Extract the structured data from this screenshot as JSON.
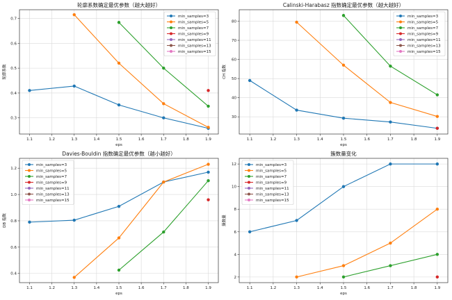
{
  "colors": {
    "min_samples=3": "#1f77b4",
    "min_samples=5": "#ff7f0e",
    "min_samples=7": "#2ca02c",
    "min_samples=9": "#d62728",
    "min_samples=11": "#9467bd",
    "min_samples=13": "#8c564b",
    "min_samples=15": "#e377c2"
  },
  "chart_data": [
    {
      "type": "line",
      "title": "轮廓系数确定最优参数（越大越好）",
      "xlabel": "eps",
      "ylabel": "轮廓系数",
      "x": [
        1.1,
        1.3,
        1.5,
        1.7,
        1.9
      ],
      "xticks": [
        1.1,
        1.2,
        1.3,
        1.4,
        1.5,
        1.6,
        1.7,
        1.8,
        1.9
      ],
      "ylim": [
        0.235,
        0.735
      ],
      "yticks": [
        0.3,
        0.4,
        0.5,
        0.6,
        0.7
      ],
      "grid": true,
      "legend": "top-right",
      "series": [
        {
          "name": "min_samples=3",
          "values": [
            0.41,
            0.428,
            0.352,
            0.3,
            0.258
          ]
        },
        {
          "name": "min_samples=5",
          "values": [
            null,
            0.715,
            0.52,
            0.357,
            0.262
          ]
        },
        {
          "name": "min_samples=7",
          "values": [
            null,
            null,
            0.684,
            0.5,
            0.347
          ]
        },
        {
          "name": "min_samples=9",
          "values": [
            null,
            null,
            null,
            null,
            0.41
          ]
        },
        {
          "name": "min_samples=11",
          "values": [
            null,
            null,
            null,
            null,
            null
          ]
        },
        {
          "name": "min_samples=13",
          "values": [
            null,
            null,
            null,
            null,
            null
          ]
        },
        {
          "name": "min_samples=15",
          "values": [
            null,
            null,
            null,
            null,
            null
          ]
        }
      ]
    },
    {
      "type": "line",
      "title": "Calinski-Harabasz 指数确定最优参数（越大越好）",
      "xlabel": "eps",
      "ylabel": "CH 指数",
      "x": [
        1.1,
        1.3,
        1.5,
        1.7,
        1.9
      ],
      "xticks": [
        1.1,
        1.2,
        1.3,
        1.4,
        1.5,
        1.6,
        1.7,
        1.8,
        1.9
      ],
      "ylim": [
        21,
        86
      ],
      "yticks": [
        30,
        40,
        50,
        60,
        70,
        80
      ],
      "grid": true,
      "legend": "top-right",
      "series": [
        {
          "name": "min_samples=3",
          "values": [
            49,
            33.5,
            29.3,
            27.3,
            24
          ]
        },
        {
          "name": "min_samples=5",
          "values": [
            null,
            79.5,
            57,
            37.5,
            30.2
          ]
        },
        {
          "name": "min_samples=7",
          "values": [
            null,
            null,
            83,
            56.5,
            41.5
          ]
        },
        {
          "name": "min_samples=9",
          "values": [
            null,
            null,
            null,
            null,
            24
          ]
        },
        {
          "name": "min_samples=11",
          "values": [
            null,
            null,
            null,
            null,
            null
          ]
        },
        {
          "name": "min_samples=13",
          "values": [
            null,
            null,
            null,
            null,
            null
          ]
        },
        {
          "name": "min_samples=15",
          "values": [
            null,
            null,
            null,
            null,
            null
          ]
        }
      ]
    },
    {
      "type": "line",
      "title": "Davies-Bouldin 指数确定最优参数（越小越好）",
      "xlabel": "eps",
      "ylabel": "DB 指数",
      "x": [
        1.1,
        1.3,
        1.5,
        1.7,
        1.9
      ],
      "xticks": [
        1.1,
        1.2,
        1.3,
        1.4,
        1.5,
        1.6,
        1.7,
        1.8,
        1.9
      ],
      "ylim": [
        0.33,
        1.275
      ],
      "yticks": [
        0.4,
        0.6,
        0.8,
        1.0,
        1.2
      ],
      "grid": true,
      "legend": "top-left",
      "series": [
        {
          "name": "min_samples=3",
          "values": [
            0.79,
            0.805,
            0.91,
            1.095,
            1.17
          ]
        },
        {
          "name": "min_samples=5",
          "values": [
            null,
            0.37,
            0.67,
            1.095,
            1.23
          ]
        },
        {
          "name": "min_samples=7",
          "values": [
            null,
            null,
            0.425,
            0.715,
            1.105
          ]
        },
        {
          "name": "min_samples=9",
          "values": [
            null,
            null,
            null,
            null,
            0.96
          ]
        },
        {
          "name": "min_samples=11",
          "values": [
            null,
            null,
            null,
            null,
            null
          ]
        },
        {
          "name": "min_samples=13",
          "values": [
            null,
            null,
            null,
            null,
            null
          ]
        },
        {
          "name": "min_samples=15",
          "values": [
            null,
            null,
            null,
            null,
            null
          ]
        }
      ]
    },
    {
      "type": "line",
      "title": "簇数量变化",
      "xlabel": "eps",
      "ylabel": "簇数量",
      "x": [
        1.1,
        1.3,
        1.5,
        1.7,
        1.9
      ],
      "xticks": [
        1.1,
        1.2,
        1.3,
        1.4,
        1.5,
        1.6,
        1.7,
        1.8,
        1.9
      ],
      "ylim": [
        1.5,
        12.5
      ],
      "yticks": [
        2,
        4,
        6,
        8,
        10,
        12
      ],
      "grid": true,
      "legend": "top-left",
      "series": [
        {
          "name": "min_samples=3",
          "values": [
            6,
            7,
            10,
            12,
            12
          ]
        },
        {
          "name": "min_samples=5",
          "values": [
            null,
            2,
            3,
            5,
            8
          ]
        },
        {
          "name": "min_samples=7",
          "values": [
            null,
            null,
            2,
            3,
            4
          ]
        },
        {
          "name": "min_samples=9",
          "values": [
            null,
            null,
            null,
            null,
            2
          ]
        },
        {
          "name": "min_samples=11",
          "values": [
            null,
            null,
            null,
            null,
            null
          ]
        },
        {
          "name": "min_samples=13",
          "values": [
            null,
            null,
            null,
            null,
            null
          ]
        },
        {
          "name": "min_samples=15",
          "values": [
            null,
            null,
            null,
            null,
            null
          ]
        }
      ]
    }
  ]
}
